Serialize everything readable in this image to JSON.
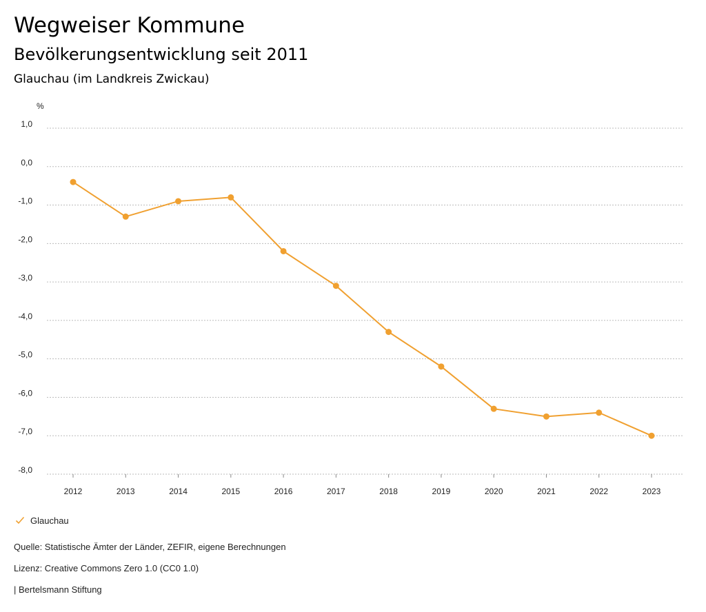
{
  "header": {
    "title": "Wegweiser Kommune",
    "subtitle": "Bevölkerungsentwicklung seit 2011",
    "region": "Glauchau (im Landkreis Zwickau)"
  },
  "colors": {
    "series": "#F0A030",
    "grid": "#bbbbbb",
    "axis_text": "#222222"
  },
  "chart_data": {
    "type": "line",
    "title": "Bevölkerungsentwicklung seit 2011",
    "ylabel": "%",
    "xlabel": "",
    "x": [
      "2012",
      "2013",
      "2014",
      "2015",
      "2016",
      "2017",
      "2018",
      "2019",
      "2020",
      "2021",
      "2022",
      "2023"
    ],
    "series": [
      {
        "name": "Glauchau",
        "values": [
          -0.4,
          -1.3,
          -0.9,
          -0.8,
          -2.2,
          -3.1,
          -4.3,
          -5.2,
          -6.3,
          -6.5,
          -6.4,
          -7.0
        ]
      }
    ],
    "yticks": [
      1.0,
      0.0,
      -1.0,
      -2.0,
      -3.0,
      -4.0,
      -5.0,
      -6.0,
      -7.0,
      -8.0
    ],
    "ytick_labels": [
      "1,0",
      "0,0",
      "-1,0",
      "-2,0",
      "-3,0",
      "-4,0",
      "-5,0",
      "-6,0",
      "-7,0",
      "-8,0"
    ],
    "ylim": [
      -8.0,
      1.0
    ],
    "grid": true,
    "legend_position": "bottom-left"
  },
  "legend": {
    "label": "Glauchau"
  },
  "footer": {
    "source": "Quelle: Statistische Ämter der Länder, ZEFIR, eigene Berechnungen",
    "license": "Lizenz: Creative Commons Zero 1.0 (CC0 1.0)",
    "publisher": "| Bertelsmann Stiftung"
  }
}
